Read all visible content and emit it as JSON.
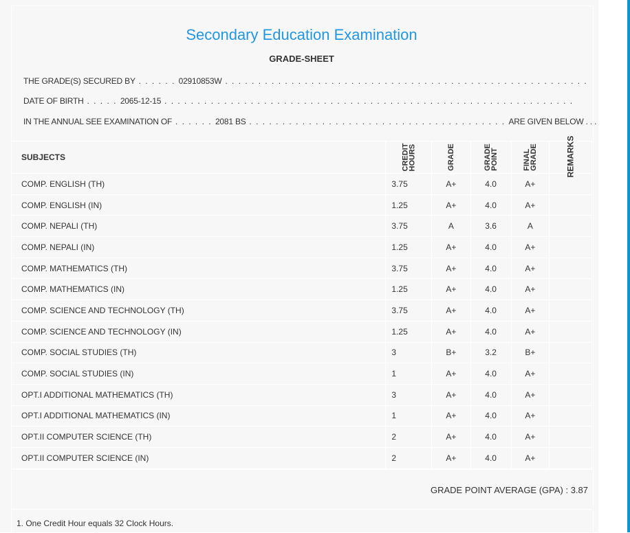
{
  "header": {
    "title": "Secondary Education Examination",
    "subtitle": "GRADE-SHEET"
  },
  "info": {
    "secured_label": "THE GRADE(S) SECURED BY",
    "secured_value": "02910853W",
    "dob_label": "DATE OF BIRTH",
    "dob_value": "2065-12-15",
    "exam_label": "IN THE ANNUAL SEE EXAMINATION OF",
    "exam_value": "2081 BS",
    "exam_suffix": "ARE GIVEN BELOW . . ."
  },
  "table": {
    "headers": {
      "subjects": "SUBJECTS",
      "credit_1": "CREDIT",
      "credit_2": "HOURS",
      "grade": "GRADE",
      "gp_1": "GRADE",
      "gp_2": "POINT",
      "final_1": "FINAL",
      "final_2": "GRADE",
      "remarks": "REMARKS"
    },
    "rows": [
      {
        "subject": "COMP. ENGLISH (TH)",
        "credit": "3.75",
        "grade": "A+",
        "gp": "4.0",
        "final": "A+"
      },
      {
        "subject": "COMP. ENGLISH (IN)",
        "credit": "1.25",
        "grade": "A+",
        "gp": "4.0",
        "final": "A+"
      },
      {
        "subject": "COMP. NEPALI (TH)",
        "credit": "3.75",
        "grade": "A",
        "gp": "3.6",
        "final": "A"
      },
      {
        "subject": "COMP. NEPALI (IN)",
        "credit": "1.25",
        "grade": "A+",
        "gp": "4.0",
        "final": "A+"
      },
      {
        "subject": "COMP. MATHEMATICS (TH)",
        "credit": "3.75",
        "grade": "A+",
        "gp": "4.0",
        "final": "A+"
      },
      {
        "subject": "COMP. MATHEMATICS (IN)",
        "credit": "1.25",
        "grade": "A+",
        "gp": "4.0",
        "final": "A+"
      },
      {
        "subject": "COMP. SCIENCE AND TECHNOLOGY (TH)",
        "credit": "3.75",
        "grade": "A+",
        "gp": "4.0",
        "final": "A+"
      },
      {
        "subject": "COMP. SCIENCE AND TECHNOLOGY (IN)",
        "credit": "1.25",
        "grade": "A+",
        "gp": "4.0",
        "final": "A+"
      },
      {
        "subject": "COMP. SOCIAL STUDIES (TH)",
        "credit": "3",
        "grade": "B+",
        "gp": "3.2",
        "final": "B+"
      },
      {
        "subject": "COMP. SOCIAL STUDIES (IN)",
        "credit": "1",
        "grade": "A+",
        "gp": "4.0",
        "final": "A+"
      },
      {
        "subject": "OPT.I ADDITIONAL MATHEMATICS (TH)",
        "credit": "3",
        "grade": "A+",
        "gp": "4.0",
        "final": "A+"
      },
      {
        "subject": "OPT.I ADDITIONAL MATHEMATICS (IN)",
        "credit": "1",
        "grade": "A+",
        "gp": "4.0",
        "final": "A+"
      },
      {
        "subject": "OPT.II COMPUTER SCIENCE (TH)",
        "credit": "2",
        "grade": "A+",
        "gp": "4.0",
        "final": "A+"
      },
      {
        "subject": "OPT.II COMPUTER SCIENCE (IN)",
        "credit": "2",
        "grade": "A+",
        "gp": "4.0",
        "final": "A+"
      }
    ]
  },
  "gpa": "GRADE POINT AVERAGE (GPA) : 3.87",
  "note": "1. One Credit Hour equals 32 Clock Hours.",
  "colors": {
    "title": "#2196e3",
    "panel": "#f7f7f7",
    "scrollbar": "#0a97cf"
  }
}
